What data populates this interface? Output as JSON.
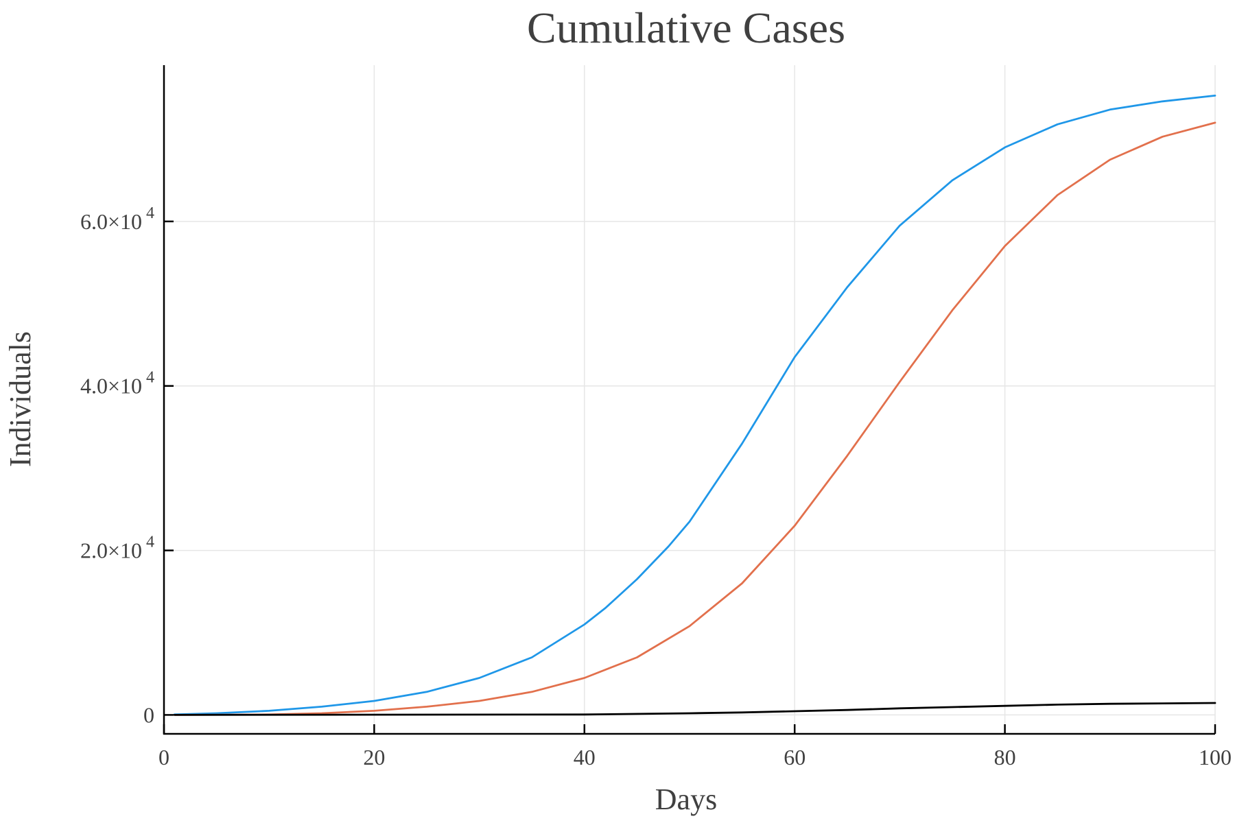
{
  "chart_data": {
    "type": "line",
    "title": "Cumulative Cases",
    "xlabel": "Days",
    "ylabel": "Individuals",
    "xlim": [
      0,
      100
    ],
    "ylim": [
      -2300,
      79000
    ],
    "xticks": [
      0,
      20,
      40,
      60,
      80,
      100
    ],
    "xtick_labels": [
      "0",
      "20",
      "40",
      "60",
      "80",
      "100"
    ],
    "yticks": [
      0,
      20000,
      40000,
      60000
    ],
    "ytick_labels": [
      {
        "mantissa": "0",
        "exponent": ""
      },
      {
        "mantissa": "2.0×10",
        "exponent": "4"
      },
      {
        "mantissa": "4.0×10",
        "exponent": "4"
      },
      {
        "mantissa": "6.0×10",
        "exponent": "4"
      }
    ],
    "grid": true,
    "legend": "none",
    "series": [
      {
        "color": "#1f97e8",
        "x": [
          1,
          5,
          10,
          15,
          20,
          25,
          30,
          35,
          40,
          42,
          45,
          48,
          50,
          55,
          60,
          65,
          70,
          75,
          80,
          85,
          90,
          95,
          100
        ],
        "y": [
          50,
          200,
          500,
          1000,
          1700,
          2800,
          4500,
          7000,
          11000,
          13000,
          16500,
          20500,
          23500,
          33000,
          43500,
          52000,
          59500,
          65000,
          69000,
          71800,
          73600,
          74600,
          75300
        ]
      },
      {
        "color": "#e2704c",
        "x": [
          1,
          10,
          15,
          20,
          25,
          30,
          35,
          40,
          45,
          50,
          55,
          60,
          65,
          70,
          75,
          80,
          85,
          90,
          95,
          100
        ],
        "y": [
          0,
          50,
          200,
          500,
          1000,
          1700,
          2800,
          4500,
          7000,
          10800,
          16000,
          23000,
          31500,
          40500,
          49200,
          57000,
          63200,
          67500,
          70300,
          72000
        ]
      },
      {
        "color": "#000000",
        "x": [
          1,
          40,
          50,
          55,
          60,
          65,
          70,
          75,
          80,
          85,
          90,
          95,
          100
        ],
        "y": [
          0,
          50,
          200,
          300,
          450,
          600,
          800,
          950,
          1100,
          1250,
          1350,
          1400,
          1450
        ]
      }
    ]
  }
}
